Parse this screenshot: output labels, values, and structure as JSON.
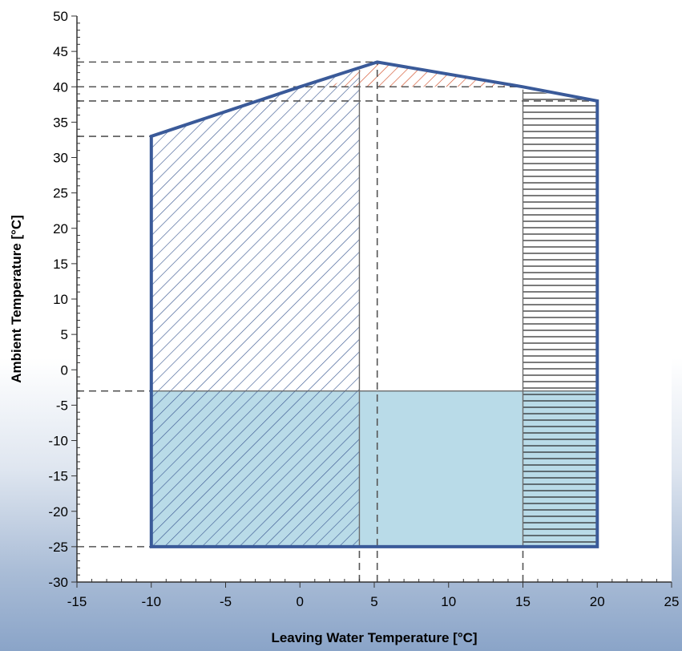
{
  "chart_data": {
    "type": "area",
    "xlabel": "Leaving Water Temperature [°C]",
    "ylabel": "Ambient Temperature [°C]",
    "xlim": [
      -15,
      25
    ],
    "ylim": [
      -30,
      50
    ],
    "xticks": [
      -15,
      -10,
      -5,
      0,
      5,
      10,
      15,
      20,
      25
    ],
    "yticks": [
      50,
      45,
      40,
      35,
      30,
      25,
      20,
      15,
      10,
      5,
      0,
      -5,
      -10,
      -15,
      -20,
      -25,
      -30
    ],
    "grid": false,
    "envelope": [
      [
        -10,
        -25
      ],
      [
        -10,
        33
      ],
      [
        0,
        40
      ],
      [
        5.2,
        43.5
      ],
      [
        15,
        40
      ],
      [
        20,
        38
      ],
      [
        20,
        -25
      ]
    ],
    "regions": [
      {
        "pattern": "diagonal-blue",
        "polygon": [
          [
            -10,
            -25
          ],
          [
            -10,
            33
          ],
          [
            0,
            40
          ],
          [
            4,
            42.4
          ],
          [
            4,
            -25
          ]
        ]
      },
      {
        "pattern": "diagonal-orange",
        "polygon": [
          [
            2,
            40
          ],
          [
            5.2,
            43.5
          ],
          [
            15,
            40
          ]
        ]
      },
      {
        "pattern": "horizontal-black",
        "polygon": [
          [
            15,
            -25
          ],
          [
            15,
            39.6
          ],
          [
            20,
            38
          ],
          [
            20,
            -25
          ]
        ]
      },
      {
        "pattern": "light-blue-fill",
        "polygon": [
          [
            -10,
            -25
          ],
          [
            -10,
            -3
          ],
          [
            20,
            -3
          ],
          [
            20,
            -25
          ]
        ]
      }
    ],
    "reference_lines": {
      "horizontal": [
        {
          "y": 43.5,
          "x_from": -15,
          "x_to": 5.2
        },
        {
          "y": 40,
          "x_from": -15,
          "x_to": 15
        },
        {
          "y": 38,
          "x_from": -15,
          "x_to": 20
        },
        {
          "y": 33,
          "x_from": -15,
          "x_to": -10
        },
        {
          "y": -3,
          "x_from": -15,
          "x_to": -10
        },
        {
          "y": -25,
          "x_from": -15,
          "x_to": -10
        }
      ],
      "vertical": [
        {
          "x": 4,
          "y_from": -30,
          "y_to": -25
        },
        {
          "x": 5.2,
          "y_from": -30,
          "y_to": 43.5
        },
        {
          "x": 15,
          "y_from": -30,
          "y_to": -25
        }
      ],
      "solid_internal": [
        {
          "from": [
            4,
            -25
          ],
          "to": [
            4,
            42.4
          ]
        },
        {
          "from": [
            15,
            -25
          ],
          "to": [
            15,
            39.6
          ]
        },
        {
          "from": [
            -10,
            -3
          ],
          "to": [
            20,
            -3
          ]
        }
      ]
    },
    "colors": {
      "envelope": "#3a5a99",
      "diagonal_blue": "#3f5c94",
      "diagonal_orange": "#d2502a",
      "horizontal": "#222222",
      "light_blue": "#b9dbe8"
    }
  }
}
